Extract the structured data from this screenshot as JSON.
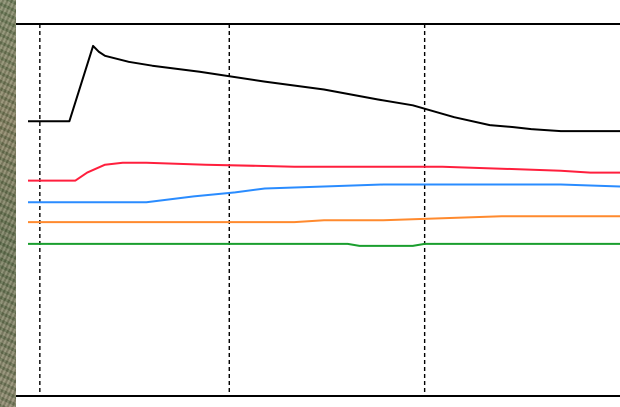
{
  "chart_data": {
    "type": "line",
    "title": "",
    "xlabel": "",
    "ylabel": "",
    "xlim": [
      0,
      100
    ],
    "ylim": [
      0,
      100
    ],
    "grid": "vertical-dashed",
    "legend": "none",
    "vertical_gridlines_x": [
      2,
      34,
      67
    ],
    "series": [
      {
        "color": "#000000",
        "x": [
          0,
          7,
          11,
          12,
          13,
          17,
          21,
          29,
          40,
          50,
          59,
          65,
          72,
          78,
          82,
          85,
          90,
          100
        ],
        "y": [
          58,
          58,
          96,
          93,
          91,
          88,
          86,
          83,
          78,
          74,
          69,
          66,
          60,
          56,
          55,
          54,
          53,
          53
        ]
      },
      {
        "color": "#ff1f3d",
        "x": [
          0,
          8,
          10,
          13,
          16,
          20,
          30,
          45,
          55,
          70,
          80,
          90,
          95,
          100
        ],
        "y": [
          28,
          28,
          32,
          36,
          37,
          37,
          36,
          35,
          35,
          35,
          34,
          33,
          32,
          32
        ]
      },
      {
        "color": "#2a8cff",
        "x": [
          0,
          10,
          20,
          28,
          35,
          40,
          50,
          60,
          70,
          80,
          90,
          100
        ],
        "y": [
          17,
          17,
          17,
          20,
          22,
          24,
          25,
          26,
          26,
          26,
          26,
          25
        ]
      },
      {
        "color": "#ff8a2e",
        "x": [
          0,
          15,
          30,
          45,
          50,
          60,
          70,
          80,
          90,
          100
        ],
        "y": [
          7,
          7,
          7,
          7,
          8,
          8,
          9,
          10,
          10,
          10
        ]
      },
      {
        "color": "#1a9e2e",
        "x": [
          0,
          20,
          40,
          54,
          56,
          63,
          65,
          67,
          80,
          100
        ],
        "y": [
          -4,
          -4,
          -4,
          -4,
          -5,
          -5,
          -5,
          -4,
          -4,
          -4
        ]
      }
    ]
  }
}
